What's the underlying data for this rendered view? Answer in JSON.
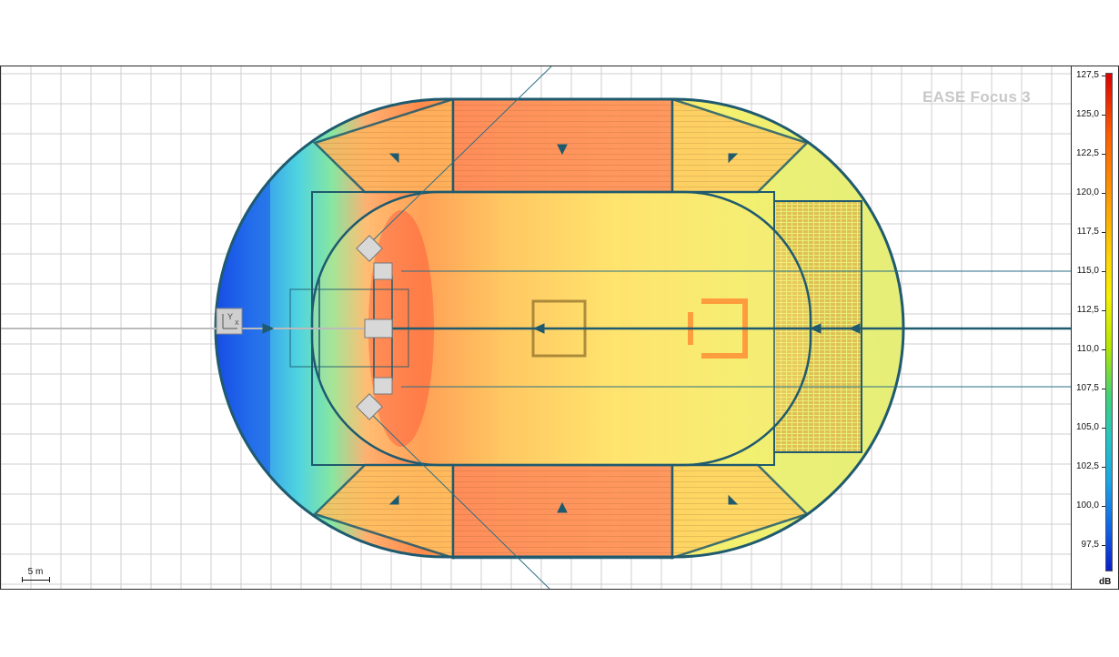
{
  "app": {
    "watermark": "EASE Focus 3"
  },
  "scale_bar": {
    "label": "5 m"
  },
  "colors": {
    "outline": "#1f5a6e",
    "grid": "#cfcfcf",
    "seat_stripe": "#7a4a20",
    "speaker": "#c9c9c9",
    "floor_tint": "#fde86a"
  },
  "legend": {
    "unit": "dB",
    "ticks": [
      "127,5",
      "125,0",
      "122,5",
      "120,0",
      "117,5",
      "115,0",
      "112,5",
      "110,0",
      "107,5",
      "105,0",
      "102,5",
      "100,0",
      "97,5"
    ],
    "scale_top": 127.5,
    "scale_bottom": 96.0
  },
  "icons": {
    "axis_marker": "xy-axis-icon",
    "aim_arrow": "arrow-icon",
    "speaker": "loudspeaker-icon"
  }
}
